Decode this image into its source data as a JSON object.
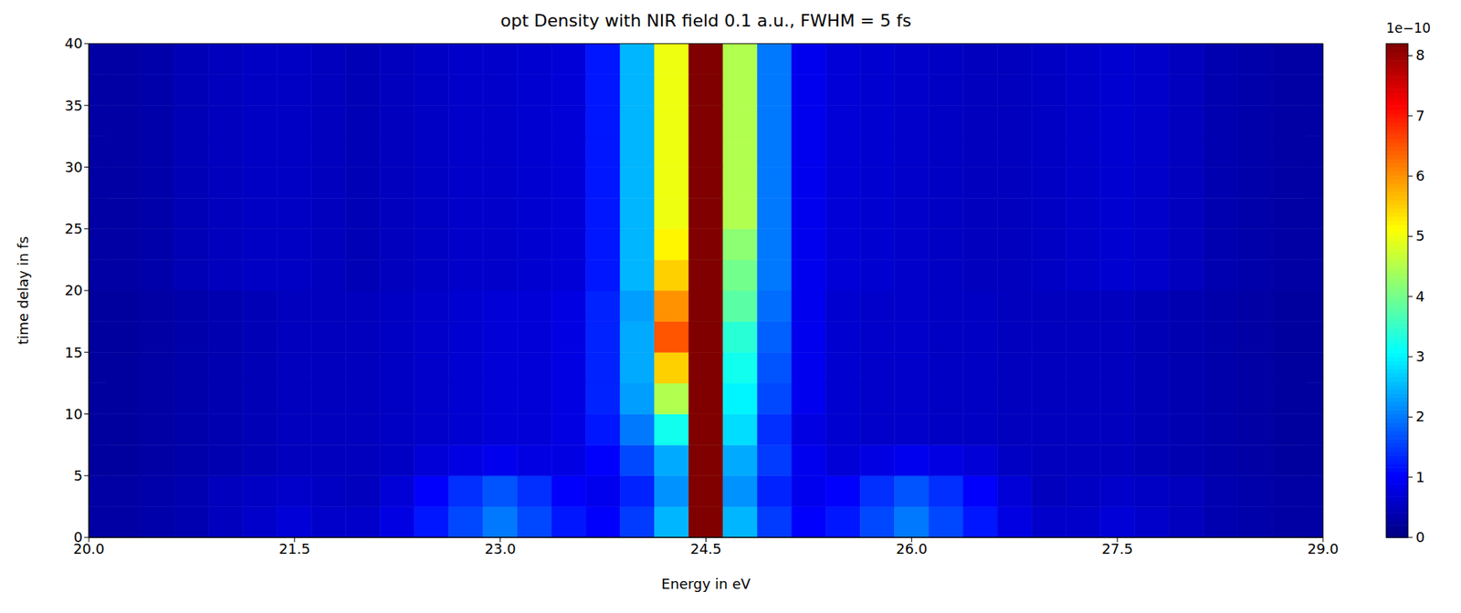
{
  "chart_data": {
    "type": "heatmap",
    "title": "opt Density with NIR field 0.1 a.u., FWHM = 5 fs",
    "x_label": "Energy in eV",
    "y_label": "time delay in fs",
    "xlim": [
      20,
      29
    ],
    "ylim": [
      0,
      40
    ],
    "xticks": [
      {
        "value": 20,
        "label": "20.0"
      },
      {
        "value": 21.5,
        "label": "21.5"
      },
      {
        "value": 23,
        "label": "23.0"
      },
      {
        "value": 24.5,
        "label": "24.5"
      },
      {
        "value": 26,
        "label": "26.0"
      },
      {
        "value": 27.5,
        "label": "27.5"
      },
      {
        "value": 29,
        "label": "29.0"
      }
    ],
    "yticks": [
      0,
      5,
      10,
      15,
      20,
      25,
      30,
      35,
      40
    ],
    "grid": false,
    "x_edges": [
      20,
      20.125,
      20.375,
      20.625,
      20.875,
      21.125,
      21.375,
      21.625,
      21.875,
      22.125,
      22.375,
      22.625,
      22.875,
      23.125,
      23.375,
      23.625,
      23.875,
      24.125,
      24.375,
      24.625,
      24.875,
      25.125,
      25.375,
      25.625,
      25.875,
      26.125,
      26.375,
      26.625,
      26.875,
      27.125,
      27.375,
      27.625,
      27.875,
      28.125,
      28.375,
      28.625,
      28.875,
      29
    ],
    "y_edges": [
      0,
      2.5,
      5,
      7.5,
      10,
      12.5,
      15,
      17.5,
      20,
      22.5,
      25,
      27.5,
      30,
      32.5,
      35,
      37.5,
      40
    ],
    "cells": [
      [
        0.3,
        0.3,
        0.35,
        0.4,
        0.5,
        0.6,
        0.7,
        0.6,
        0.6,
        0.8,
        1.2,
        1.6,
        2.0,
        1.6,
        1.2,
        1.0,
        1.5,
        2.5,
        8.2,
        2.5,
        1.5,
        1.0,
        1.2,
        1.6,
        2.0,
        1.6,
        1.2,
        0.8,
        0.6,
        0.6,
        0.7,
        0.6,
        0.5,
        0.4,
        0.35,
        0.3,
        0.3
      ],
      [
        0.3,
        0.3,
        0.35,
        0.4,
        0.5,
        0.55,
        0.6,
        0.55,
        0.5,
        0.7,
        1.0,
        1.4,
        1.7,
        1.4,
        1.0,
        0.9,
        1.3,
        2.2,
        8.2,
        2.2,
        1.3,
        0.9,
        1.0,
        1.4,
        1.7,
        1.4,
        1.0,
        0.7,
        0.5,
        0.55,
        0.6,
        0.55,
        0.5,
        0.4,
        0.35,
        0.3,
        0.3
      ],
      [
        0.25,
        0.25,
        0.3,
        0.35,
        0.4,
        0.45,
        0.5,
        0.5,
        0.5,
        0.55,
        0.7,
        0.8,
        0.9,
        0.8,
        0.8,
        1.0,
        1.6,
        2.4,
        8.2,
        2.4,
        1.5,
        0.9,
        0.7,
        0.8,
        0.9,
        0.8,
        0.7,
        0.55,
        0.5,
        0.5,
        0.5,
        0.45,
        0.4,
        0.35,
        0.3,
        0.25,
        0.25
      ],
      [
        0.25,
        0.25,
        0.3,
        0.35,
        0.4,
        0.45,
        0.5,
        0.5,
        0.5,
        0.55,
        0.6,
        0.65,
        0.7,
        0.7,
        0.8,
        1.2,
        2.0,
        3.2,
        8.2,
        2.8,
        1.4,
        0.8,
        0.65,
        0.6,
        0.6,
        0.55,
        0.55,
        0.5,
        0.5,
        0.5,
        0.5,
        0.45,
        0.4,
        0.35,
        0.3,
        0.25,
        0.25
      ],
      [
        0.25,
        0.25,
        0.3,
        0.35,
        0.4,
        0.45,
        0.5,
        0.5,
        0.5,
        0.55,
        0.6,
        0.65,
        0.7,
        0.7,
        0.8,
        1.3,
        2.3,
        4.5,
        8.2,
        3.0,
        1.6,
        0.9,
        0.65,
        0.6,
        0.6,
        0.55,
        0.55,
        0.5,
        0.5,
        0.5,
        0.5,
        0.45,
        0.4,
        0.35,
        0.3,
        0.25,
        0.25
      ],
      [
        0.25,
        0.25,
        0.3,
        0.35,
        0.4,
        0.45,
        0.5,
        0.5,
        0.5,
        0.55,
        0.6,
        0.65,
        0.7,
        0.7,
        0.8,
        1.3,
        2.4,
        5.5,
        8.2,
        3.2,
        1.7,
        0.9,
        0.65,
        0.6,
        0.6,
        0.55,
        0.55,
        0.5,
        0.5,
        0.5,
        0.5,
        0.45,
        0.4,
        0.35,
        0.3,
        0.25,
        0.25
      ],
      [
        0.25,
        0.25,
        0.3,
        0.35,
        0.4,
        0.45,
        0.5,
        0.5,
        0.5,
        0.55,
        0.6,
        0.65,
        0.7,
        0.7,
        0.8,
        1.3,
        2.4,
        6.5,
        8.2,
        3.4,
        1.8,
        0.9,
        0.65,
        0.6,
        0.6,
        0.55,
        0.55,
        0.5,
        0.5,
        0.5,
        0.5,
        0.45,
        0.4,
        0.35,
        0.3,
        0.25,
        0.25
      ],
      [
        0.25,
        0.25,
        0.3,
        0.35,
        0.4,
        0.45,
        0.5,
        0.5,
        0.5,
        0.55,
        0.6,
        0.65,
        0.7,
        0.7,
        0.8,
        1.3,
        2.3,
        6.0,
        8.2,
        3.8,
        1.9,
        0.9,
        0.65,
        0.6,
        0.6,
        0.55,
        0.55,
        0.5,
        0.5,
        0.5,
        0.5,
        0.45,
        0.4,
        0.35,
        0.3,
        0.25,
        0.25
      ],
      [
        0.3,
        0.3,
        0.35,
        0.45,
        0.5,
        0.55,
        0.55,
        0.5,
        0.45,
        0.5,
        0.55,
        0.6,
        0.6,
        0.65,
        0.7,
        1.2,
        2.5,
        5.5,
        8.2,
        4.0,
        2.0,
        0.9,
        0.7,
        0.65,
        0.6,
        0.55,
        0.5,
        0.5,
        0.55,
        0.6,
        0.65,
        0.6,
        0.5,
        0.4,
        0.35,
        0.3,
        0.3
      ],
      [
        0.3,
        0.3,
        0.35,
        0.45,
        0.5,
        0.55,
        0.55,
        0.5,
        0.45,
        0.5,
        0.55,
        0.6,
        0.6,
        0.65,
        0.7,
        1.2,
        2.5,
        5.2,
        8.2,
        4.2,
        2.0,
        0.9,
        0.7,
        0.65,
        0.6,
        0.55,
        0.5,
        0.5,
        0.55,
        0.6,
        0.65,
        0.6,
        0.5,
        0.4,
        0.35,
        0.3,
        0.3
      ],
      [
        0.3,
        0.3,
        0.35,
        0.45,
        0.5,
        0.55,
        0.55,
        0.5,
        0.45,
        0.5,
        0.55,
        0.6,
        0.6,
        0.65,
        0.7,
        1.2,
        2.5,
        5.0,
        8.2,
        4.5,
        2.0,
        0.9,
        0.7,
        0.65,
        0.6,
        0.55,
        0.5,
        0.5,
        0.55,
        0.6,
        0.65,
        0.6,
        0.5,
        0.4,
        0.35,
        0.3,
        0.3
      ],
      [
        0.3,
        0.3,
        0.35,
        0.45,
        0.5,
        0.55,
        0.55,
        0.5,
        0.45,
        0.5,
        0.55,
        0.6,
        0.6,
        0.65,
        0.7,
        1.2,
        2.5,
        5.0,
        8.2,
        4.5,
        2.0,
        0.9,
        0.7,
        0.65,
        0.6,
        0.55,
        0.5,
        0.5,
        0.55,
        0.6,
        0.65,
        0.6,
        0.5,
        0.4,
        0.35,
        0.3,
        0.3
      ],
      [
        0.3,
        0.3,
        0.35,
        0.45,
        0.5,
        0.55,
        0.55,
        0.5,
        0.45,
        0.5,
        0.55,
        0.6,
        0.6,
        0.65,
        0.7,
        1.2,
        2.5,
        5.0,
        8.2,
        4.5,
        2.0,
        0.9,
        0.7,
        0.65,
        0.6,
        0.55,
        0.5,
        0.5,
        0.55,
        0.6,
        0.65,
        0.6,
        0.5,
        0.4,
        0.35,
        0.3,
        0.3
      ],
      [
        0.3,
        0.3,
        0.35,
        0.45,
        0.5,
        0.55,
        0.55,
        0.5,
        0.45,
        0.5,
        0.55,
        0.6,
        0.6,
        0.65,
        0.7,
        1.2,
        2.5,
        5.0,
        8.2,
        4.5,
        2.0,
        0.9,
        0.7,
        0.65,
        0.6,
        0.55,
        0.5,
        0.5,
        0.55,
        0.6,
        0.65,
        0.6,
        0.5,
        0.4,
        0.35,
        0.3,
        0.3
      ],
      [
        0.3,
        0.3,
        0.35,
        0.45,
        0.5,
        0.55,
        0.55,
        0.5,
        0.45,
        0.5,
        0.55,
        0.6,
        0.6,
        0.65,
        0.7,
        1.2,
        2.5,
        5.0,
        8.2,
        4.5,
        2.0,
        0.9,
        0.7,
        0.65,
        0.6,
        0.55,
        0.5,
        0.5,
        0.55,
        0.6,
        0.65,
        0.6,
        0.5,
        0.4,
        0.35,
        0.3,
        0.3
      ],
      [
        0.3,
        0.3,
        0.35,
        0.45,
        0.5,
        0.55,
        0.55,
        0.5,
        0.45,
        0.5,
        0.55,
        0.6,
        0.6,
        0.65,
        0.7,
        1.2,
        2.5,
        5.0,
        8.2,
        4.5,
        2.0,
        0.9,
        0.7,
        0.65,
        0.6,
        0.55,
        0.5,
        0.5,
        0.55,
        0.6,
        0.65,
        0.6,
        0.5,
        0.4,
        0.35,
        0.3,
        0.3
      ]
    ],
    "colorbar": {
      "lim": [
        0,
        8.2
      ],
      "ticks": [
        0,
        1,
        2,
        3,
        4,
        5,
        6,
        7,
        8
      ],
      "label": "1e−10"
    }
  }
}
